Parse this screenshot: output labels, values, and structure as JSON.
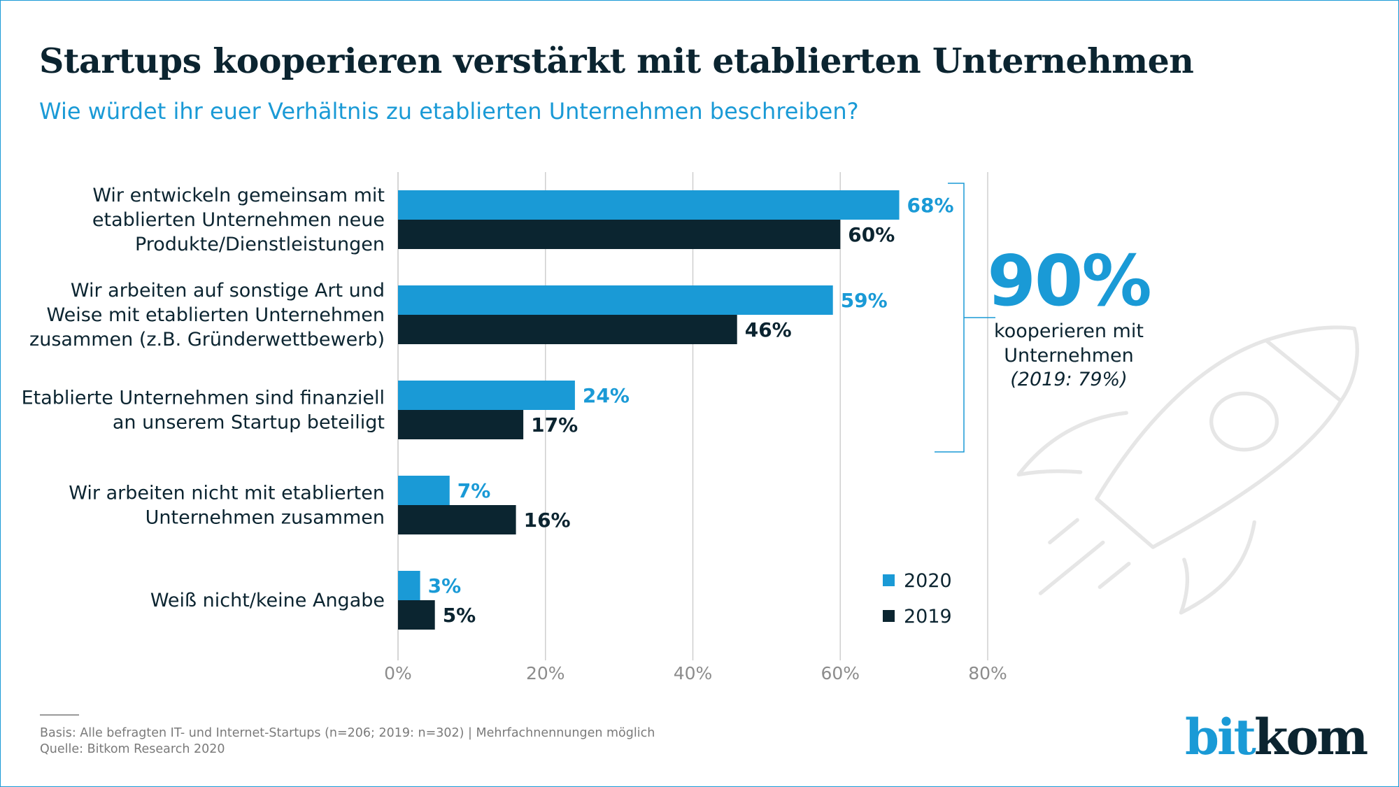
{
  "header": {
    "title": "Startups kooperieren verstärkt mit etablierten Unternehmen",
    "subtitle": "Wie würdet ihr euer Verhältnis zu etablierten Unternehmen beschreiben?"
  },
  "colors": {
    "series_2020": "#1a9ad6",
    "series_2019": "#0b2530",
    "accent": "#1a9ad6",
    "rocket": "#e6e6e6"
  },
  "chart_data": {
    "type": "bar",
    "orientation": "horizontal",
    "categories": [
      [
        "Wir entwickeln gemeinsam mit",
        "etablierten Unternehmen neue",
        "Produkte/Dienstleistungen"
      ],
      [
        "Wir arbeiten auf sonstige Art und",
        "Weise mit etablierten Unternehmen",
        "zusammen (z.B. Gründerwettbewerb)"
      ],
      [
        "Etablierte Unternehmen sind finanziell",
        "an unserem Startup beteiligt"
      ],
      [
        "Wir arbeiten nicht mit etablierten",
        "Unternehmen zusammen"
      ],
      [
        "Weiß nicht/keine Angabe"
      ]
    ],
    "series": [
      {
        "name": "2020",
        "values": [
          68,
          59,
          24,
          7,
          3
        ],
        "labels": [
          "68%",
          "59%",
          "24%",
          "7%",
          "3%"
        ]
      },
      {
        "name": "2019",
        "values": [
          60,
          46,
          17,
          16,
          5
        ],
        "labels": [
          "60%",
          "46%",
          "17%",
          "16%",
          "5%"
        ]
      }
    ],
    "xlim": [
      0,
      80
    ],
    "xticks": [
      "0%",
      "20%",
      "40%",
      "60%",
      "80%"
    ],
    "grid": true,
    "legend": "bottom-right"
  },
  "callout": {
    "value": "90%",
    "line1": "kooperieren mit",
    "line2": "Unternehmen",
    "line3": "(2019: 79%)"
  },
  "footer": {
    "basis": "Basis: Alle befragten IT- und Internet-Startups (n=206; 2019: n=302) | Mehrfachnennungen möglich",
    "source": "Quelle: Bitkom Research 2020"
  },
  "logo": {
    "part1": "bit",
    "part2": "kom"
  }
}
